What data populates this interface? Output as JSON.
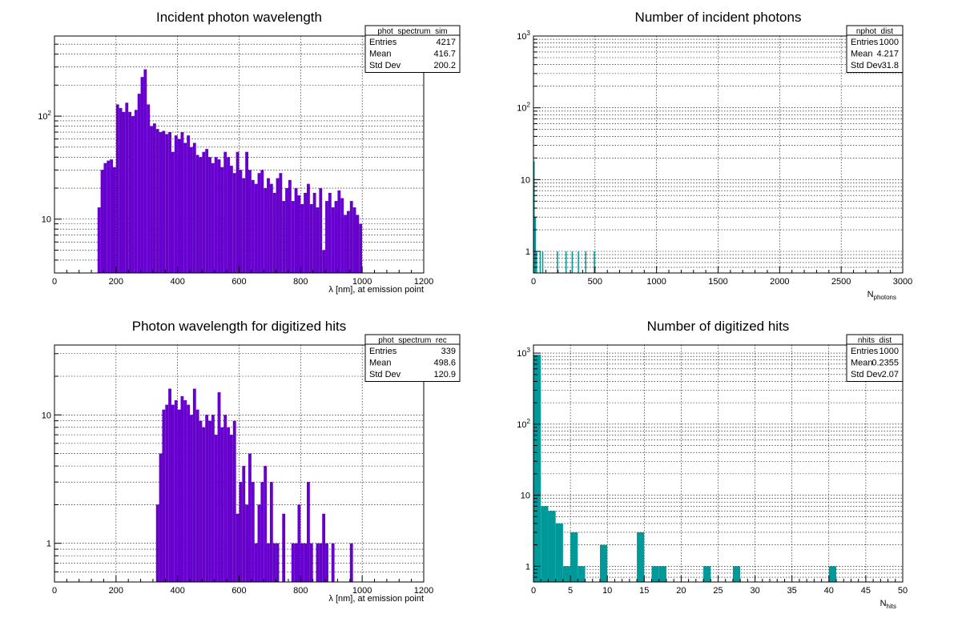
{
  "chart_data": [
    {
      "id": "phot_spectrum_sim",
      "type": "bar",
      "title": "Incident photon wavelength",
      "xlabel": "λ [nm], at emission point",
      "xlabel_sub": "",
      "xlim": [
        0,
        1200
      ],
      "log_y": true,
      "ylim": [
        3,
        600
      ],
      "xticks": [
        0,
        200,
        400,
        600,
        800,
        1000,
        1200
      ],
      "yticks": [
        {
          "v": 10,
          "label": "10"
        },
        {
          "v": 100,
          "base": "10",
          "exp": "2"
        }
      ],
      "grid": true,
      "legend": "top-right",
      "color": "#6600cc",
      "stats": {
        "name": "phot_spectrum_sim",
        "rows": [
          [
            "Entries",
            "4217"
          ],
          [
            "Mean",
            "416.7"
          ],
          [
            "Std Dev",
            "200.2"
          ]
        ]
      },
      "bin_width": 10,
      "bins": [
        {
          "x": 140,
          "y": 13
        },
        {
          "x": 150,
          "y": 30
        },
        {
          "x": 160,
          "y": 35
        },
        {
          "x": 170,
          "y": 37
        },
        {
          "x": 180,
          "y": 38
        },
        {
          "x": 190,
          "y": 32
        },
        {
          "x": 200,
          "y": 130
        },
        {
          "x": 210,
          "y": 120
        },
        {
          "x": 220,
          "y": 110
        },
        {
          "x": 230,
          "y": 135
        },
        {
          "x": 240,
          "y": 110
        },
        {
          "x": 250,
          "y": 100
        },
        {
          "x": 260,
          "y": 115
        },
        {
          "x": 270,
          "y": 165
        },
        {
          "x": 280,
          "y": 240
        },
        {
          "x": 290,
          "y": 285
        },
        {
          "x": 300,
          "y": 130
        },
        {
          "x": 310,
          "y": 80
        },
        {
          "x": 320,
          "y": 85
        },
        {
          "x": 330,
          "y": 75
        },
        {
          "x": 340,
          "y": 70
        },
        {
          "x": 350,
          "y": 72
        },
        {
          "x": 360,
          "y": 67
        },
        {
          "x": 370,
          "y": 70
        },
        {
          "x": 380,
          "y": 45
        },
        {
          "x": 390,
          "y": 65
        },
        {
          "x": 400,
          "y": 60
        },
        {
          "x": 410,
          "y": 70
        },
        {
          "x": 420,
          "y": 55
        },
        {
          "x": 430,
          "y": 65
        },
        {
          "x": 440,
          "y": 50
        },
        {
          "x": 450,
          "y": 55
        },
        {
          "x": 460,
          "y": 42
        },
        {
          "x": 470,
          "y": 40
        },
        {
          "x": 480,
          "y": 45
        },
        {
          "x": 490,
          "y": 48
        },
        {
          "x": 500,
          "y": 40
        },
        {
          "x": 510,
          "y": 35
        },
        {
          "x": 520,
          "y": 40
        },
        {
          "x": 530,
          "y": 38
        },
        {
          "x": 540,
          "y": 32
        },
        {
          "x": 550,
          "y": 45
        },
        {
          "x": 560,
          "y": 40
        },
        {
          "x": 570,
          "y": 33
        },
        {
          "x": 580,
          "y": 28
        },
        {
          "x": 590,
          "y": 45
        },
        {
          "x": 600,
          "y": 30
        },
        {
          "x": 610,
          "y": 25
        },
        {
          "x": 620,
          "y": 45
        },
        {
          "x": 630,
          "y": 30
        },
        {
          "x": 640,
          "y": 24
        },
        {
          "x": 650,
          "y": 22
        },
        {
          "x": 660,
          "y": 28
        },
        {
          "x": 670,
          "y": 30
        },
        {
          "x": 680,
          "y": 20
        },
        {
          "x": 690,
          "y": 25
        },
        {
          "x": 700,
          "y": 22
        },
        {
          "x": 710,
          "y": 18
        },
        {
          "x": 720,
          "y": 25
        },
        {
          "x": 730,
          "y": 28
        },
        {
          "x": 740,
          "y": 15
        },
        {
          "x": 750,
          "y": 20
        },
        {
          "x": 760,
          "y": 24
        },
        {
          "x": 770,
          "y": 15
        },
        {
          "x": 780,
          "y": 20
        },
        {
          "x": 790,
          "y": 17
        },
        {
          "x": 800,
          "y": 14
        },
        {
          "x": 810,
          "y": 18
        },
        {
          "x": 820,
          "y": 22
        },
        {
          "x": 830,
          "y": 14
        },
        {
          "x": 840,
          "y": 18
        },
        {
          "x": 850,
          "y": 13
        },
        {
          "x": 860,
          "y": 20
        },
        {
          "x": 870,
          "y": 5
        },
        {
          "x": 880,
          "y": 15
        },
        {
          "x": 890,
          "y": 18
        },
        {
          "x": 900,
          "y": 13
        },
        {
          "x": 910,
          "y": 15
        },
        {
          "x": 920,
          "y": 19
        },
        {
          "x": 930,
          "y": 16
        },
        {
          "x": 940,
          "y": 11
        },
        {
          "x": 950,
          "y": 12
        },
        {
          "x": 960,
          "y": 15
        },
        {
          "x": 970,
          "y": 13
        },
        {
          "x": 980,
          "y": 11
        },
        {
          "x": 990,
          "y": 9
        }
      ]
    },
    {
      "id": "nphot_dist",
      "type": "bar",
      "title": "Number of incident photons",
      "xlabel": "N",
      "xlabel_sub": "photons",
      "xlim": [
        0,
        3000
      ],
      "log_y": true,
      "ylim": [
        0.5,
        1000
      ],
      "xticks": [
        0,
        500,
        1000,
        1500,
        2000,
        2500,
        3000
      ],
      "yticks": [
        {
          "v": 1,
          "label": "1"
        },
        {
          "v": 10,
          "label": "10"
        },
        {
          "v": 100,
          "base": "10",
          "exp": "2"
        },
        {
          "v": 1000,
          "base": "10",
          "exp": "3"
        }
      ],
      "grid": true,
      "legend": "top-right",
      "color": "#009999",
      "stats": {
        "name": "nphot_dist",
        "rows": [
          [
            "Entries",
            "1000"
          ],
          [
            "Mean",
            "4.217"
          ],
          [
            "Std Dev",
            "31.8"
          ]
        ]
      },
      "bin_width": 10,
      "bins": [
        {
          "x": 0,
          "y": 18
        },
        {
          "x": 10,
          "y": 3
        },
        {
          "x": 20,
          "y": 1
        },
        {
          "x": 50,
          "y": 1
        },
        {
          "x": 70,
          "y": 1
        },
        {
          "x": 190,
          "y": 1
        },
        {
          "x": 260,
          "y": 1
        },
        {
          "x": 310,
          "y": 1
        },
        {
          "x": 360,
          "y": 1
        },
        {
          "x": 420,
          "y": 1
        },
        {
          "x": 490,
          "y": 1
        }
      ]
    },
    {
      "id": "phot_spectrum_rec",
      "type": "bar",
      "title": "Photon wavelength for digitized hits",
      "xlabel": "λ [nm], at emission point",
      "xlabel_sub": "",
      "xlim": [
        0,
        1200
      ],
      "log_y": true,
      "ylim": [
        0.5,
        35
      ],
      "xticks": [
        0,
        200,
        400,
        600,
        800,
        1000,
        1200
      ],
      "yticks": [
        {
          "v": 1,
          "label": "1"
        },
        {
          "v": 10,
          "label": "10"
        }
      ],
      "grid": true,
      "legend": "top-right",
      "color": "#6600cc",
      "stats": {
        "name": "phot_spectrum_rec",
        "rows": [
          [
            "Entries",
            "339"
          ],
          [
            "Mean",
            "498.6"
          ],
          [
            "Std Dev",
            "120.9"
          ]
        ]
      },
      "bin_width": 10,
      "bins": [
        {
          "x": 330,
          "y": 2
        },
        {
          "x": 340,
          "y": 5
        },
        {
          "x": 350,
          "y": 11
        },
        {
          "x": 360,
          "y": 12
        },
        {
          "x": 370,
          "y": 16
        },
        {
          "x": 380,
          "y": 12
        },
        {
          "x": 390,
          "y": 13
        },
        {
          "x": 400,
          "y": 11
        },
        {
          "x": 410,
          "y": 14
        },
        {
          "x": 420,
          "y": 13
        },
        {
          "x": 430,
          "y": 12
        },
        {
          "x": 440,
          "y": 10
        },
        {
          "x": 450,
          "y": 16
        },
        {
          "x": 460,
          "y": 11
        },
        {
          "x": 470,
          "y": 9
        },
        {
          "x": 480,
          "y": 8
        },
        {
          "x": 490,
          "y": 10
        },
        {
          "x": 500,
          "y": 9
        },
        {
          "x": 510,
          "y": 10
        },
        {
          "x": 520,
          "y": 7
        },
        {
          "x": 530,
          "y": 15
        },
        {
          "x": 540,
          "y": 8
        },
        {
          "x": 550,
          "y": 10
        },
        {
          "x": 560,
          "y": 8
        },
        {
          "x": 570,
          "y": 7
        },
        {
          "x": 580,
          "y": 9
        },
        {
          "x": 590,
          "y": 1.7
        },
        {
          "x": 600,
          "y": 3
        },
        {
          "x": 610,
          "y": 4
        },
        {
          "x": 620,
          "y": 2
        },
        {
          "x": 630,
          "y": 5
        },
        {
          "x": 640,
          "y": 3
        },
        {
          "x": 650,
          "y": 1
        },
        {
          "x": 660,
          "y": 2
        },
        {
          "x": 670,
          "y": 3
        },
        {
          "x": 680,
          "y": 4
        },
        {
          "x": 690,
          "y": 1
        },
        {
          "x": 700,
          "y": 3
        },
        {
          "x": 710,
          "y": 1
        },
        {
          "x": 720,
          "y": 1
        },
        {
          "x": 740,
          "y": 1.7
        },
        {
          "x": 770,
          "y": 1
        },
        {
          "x": 780,
          "y": 1
        },
        {
          "x": 790,
          "y": 2
        },
        {
          "x": 800,
          "y": 1
        },
        {
          "x": 810,
          "y": 1
        },
        {
          "x": 820,
          "y": 3
        },
        {
          "x": 830,
          "y": 1
        },
        {
          "x": 850,
          "y": 1
        },
        {
          "x": 860,
          "y": 1
        },
        {
          "x": 870,
          "y": 1.7
        },
        {
          "x": 880,
          "y": 1
        },
        {
          "x": 900,
          "y": 1
        },
        {
          "x": 960,
          "y": 1
        }
      ]
    },
    {
      "id": "nhits_dist",
      "type": "bar",
      "title": "Number of digitized hits",
      "xlabel": "N",
      "xlabel_sub": "hits",
      "xlim": [
        0,
        50
      ],
      "log_y": true,
      "ylim": [
        0.6,
        1300
      ],
      "xticks": [
        0,
        5,
        10,
        15,
        20,
        25,
        30,
        35,
        40,
        45,
        50
      ],
      "yticks": [
        {
          "v": 1,
          "label": "1"
        },
        {
          "v": 10,
          "label": "10"
        },
        {
          "v": 100,
          "base": "10",
          "exp": "2"
        },
        {
          "v": 1000,
          "base": "10",
          "exp": "3"
        }
      ],
      "grid": true,
      "legend": "top-right",
      "color": "#009999",
      "stats": {
        "name": "nhits_dist",
        "rows": [
          [
            "Entries",
            "1000"
          ],
          [
            "Mean",
            "0.2355"
          ],
          [
            "Std Dev",
            "2.07"
          ]
        ]
      },
      "bin_width": 1,
      "bins": [
        {
          "x": 0,
          "y": 950
        },
        {
          "x": 1,
          "y": 7
        },
        {
          "x": 2,
          "y": 6
        },
        {
          "x": 3,
          "y": 4
        },
        {
          "x": 4,
          "y": 1
        },
        {
          "x": 5,
          "y": 3
        },
        {
          "x": 6,
          "y": 1
        },
        {
          "x": 9,
          "y": 2
        },
        {
          "x": 14,
          "y": 3
        },
        {
          "x": 16,
          "y": 1
        },
        {
          "x": 17,
          "y": 1
        },
        {
          "x": 23,
          "y": 1
        },
        {
          "x": 27,
          "y": 1
        },
        {
          "x": 40,
          "y": 1
        }
      ]
    }
  ]
}
